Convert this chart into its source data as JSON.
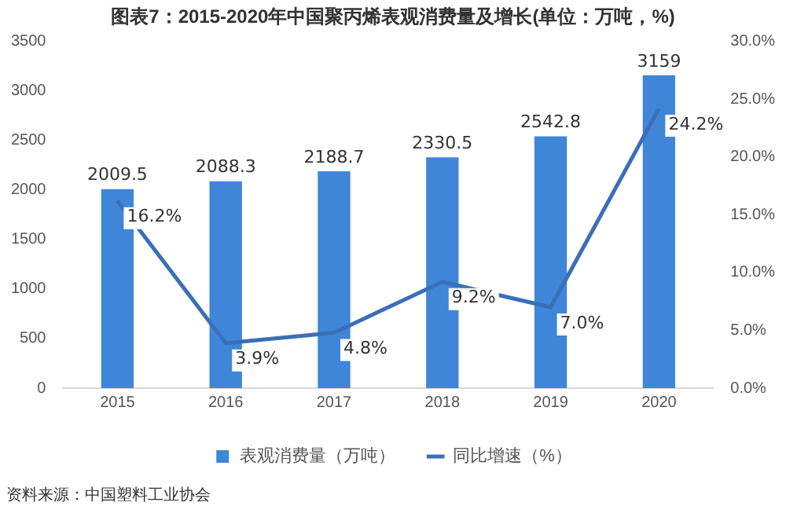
{
  "chart_data": {
    "type": "bar",
    "title": "图表7：2015-2020年中国聚丙烯表观消费量及增长(单位：万吨，%)",
    "categories": [
      "2015",
      "2016",
      "2017",
      "2018",
      "2019",
      "2020"
    ],
    "series": [
      {
        "name": "表观消费量（万吨）",
        "color": "#3f86d9",
        "values": [
          2009.5,
          2088.3,
          2188.7,
          2330.5,
          2542.8,
          3159
        ],
        "value_labels": [
          "2009.5",
          "2088.3",
          "2188.7",
          "2330.5",
          "2542.8",
          "3159"
        ]
      },
      {
        "name": "同比增速（%）",
        "type": "line",
        "axis": "y2",
        "color": "#3a6fb8",
        "values": [
          16.2,
          3.9,
          4.8,
          9.2,
          7.0,
          24.2
        ],
        "value_labels": [
          "16.2%",
          "3.9%",
          "4.8%",
          "9.2%",
          "7.0%",
          "24.2%"
        ]
      }
    ],
    "ylim": [
      0,
      3500
    ],
    "yticks": [
      0,
      500,
      1000,
      1500,
      2000,
      2500,
      3000,
      3500
    ],
    "y2lim": [
      0,
      30
    ],
    "y2ticks": [
      {
        "value": 0,
        "label": "0.0%"
      },
      {
        "value": 5,
        "label": "5.0%"
      },
      {
        "value": 10,
        "label": "10.0%"
      },
      {
        "value": 15,
        "label": "15.0%"
      },
      {
        "value": 20,
        "label": "20.0%"
      },
      {
        "value": 25,
        "label": "25.0%"
      },
      {
        "value": 30,
        "label": "30.0%"
      }
    ],
    "grid": false,
    "legend": "bottom",
    "marker": "none",
    "line_style": "solid",
    "annotations": [
      "资料来源：中国塑料工业协会"
    ]
  }
}
